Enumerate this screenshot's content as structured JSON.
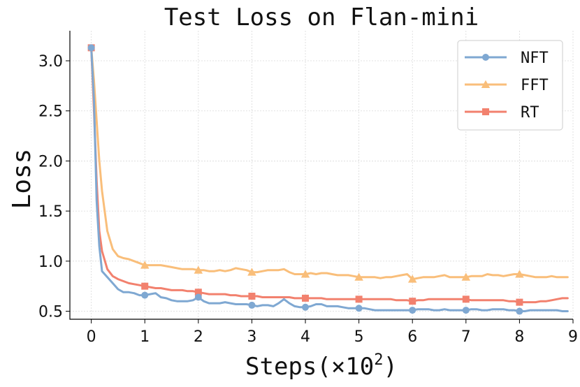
{
  "chart_data": {
    "type": "line",
    "title": "Test Loss on Flan-mini",
    "xlabel": "Steps(×10",
    "xlabel_sup": "2",
    "xlabel_close": ")",
    "ylabel": "Loss",
    "xlim": [
      -0.4,
      9.0
    ],
    "ylim": [
      0.42,
      3.3
    ],
    "xticks": [
      "0",
      "1",
      "2",
      "3",
      "4",
      "5",
      "6",
      "7",
      "8",
      "9"
    ],
    "yticks": [
      "0.5",
      "1.0",
      "1.5",
      "2.0",
      "2.5",
      "3.0"
    ],
    "grid": true,
    "legend_position": "top-right",
    "series": [
      {
        "name": "NFT",
        "color": "#7FA8D2",
        "marker": "circle",
        "x": [
          0,
          0.05,
          0.1,
          0.15,
          0.2,
          0.3,
          0.4,
          0.5,
          0.6,
          0.7,
          0.8,
          0.9,
          1.0,
          1.1,
          1.2,
          1.3,
          1.4,
          1.5,
          1.6,
          1.7,
          1.8,
          1.9,
          2.0,
          2.1,
          2.2,
          2.3,
          2.4,
          2.5,
          2.6,
          2.7,
          2.8,
          2.9,
          3.0,
          3.1,
          3.2,
          3.3,
          3.4,
          3.5,
          3.6,
          3.7,
          3.8,
          3.9,
          4.0,
          4.1,
          4.2,
          4.3,
          4.4,
          4.5,
          4.6,
          4.7,
          4.8,
          4.9,
          5.0,
          5.1,
          5.2,
          5.3,
          5.4,
          5.5,
          5.6,
          5.7,
          5.8,
          5.9,
          6.0,
          6.1,
          6.2,
          6.3,
          6.4,
          6.5,
          6.6,
          6.7,
          6.8,
          6.9,
          7.0,
          7.1,
          7.2,
          7.3,
          7.4,
          7.5,
          7.6,
          7.7,
          7.8,
          7.9,
          8.0,
          8.1,
          8.2,
          8.3,
          8.4,
          8.5,
          8.6,
          8.7,
          8.8,
          8.9
        ],
        "values": [
          3.13,
          2.6,
          1.6,
          1.15,
          0.9,
          0.84,
          0.78,
          0.72,
          0.69,
          0.69,
          0.68,
          0.66,
          0.66,
          0.67,
          0.68,
          0.64,
          0.63,
          0.61,
          0.6,
          0.6,
          0.6,
          0.61,
          0.64,
          0.6,
          0.58,
          0.58,
          0.58,
          0.59,
          0.58,
          0.57,
          0.57,
          0.57,
          0.56,
          0.55,
          0.56,
          0.56,
          0.55,
          0.58,
          0.62,
          0.58,
          0.55,
          0.54,
          0.54,
          0.55,
          0.57,
          0.57,
          0.55,
          0.55,
          0.55,
          0.54,
          0.53,
          0.53,
          0.53,
          0.53,
          0.52,
          0.51,
          0.51,
          0.51,
          0.51,
          0.51,
          0.51,
          0.51,
          0.51,
          0.52,
          0.52,
          0.52,
          0.51,
          0.51,
          0.52,
          0.51,
          0.51,
          0.51,
          0.51,
          0.52,
          0.52,
          0.51,
          0.51,
          0.52,
          0.52,
          0.52,
          0.51,
          0.51,
          0.5,
          0.5,
          0.51,
          0.51,
          0.51,
          0.51,
          0.51,
          0.51,
          0.5,
          0.5
        ],
        "marker_x": [
          0,
          1,
          2,
          3,
          4,
          5,
          6,
          7,
          8
        ]
      },
      {
        "name": "FFT",
        "color": "#F9BE7A",
        "marker": "triangle",
        "x": [
          0,
          0.05,
          0.1,
          0.15,
          0.2,
          0.3,
          0.4,
          0.5,
          0.6,
          0.7,
          0.8,
          0.9,
          1.0,
          1.1,
          1.2,
          1.3,
          1.4,
          1.5,
          1.6,
          1.7,
          1.8,
          1.9,
          2.0,
          2.1,
          2.2,
          2.3,
          2.4,
          2.5,
          2.6,
          2.7,
          2.8,
          2.9,
          3.0,
          3.1,
          3.2,
          3.3,
          3.4,
          3.5,
          3.6,
          3.7,
          3.8,
          3.9,
          4.0,
          4.1,
          4.2,
          4.3,
          4.4,
          4.5,
          4.6,
          4.7,
          4.8,
          4.9,
          5.0,
          5.1,
          5.2,
          5.3,
          5.4,
          5.5,
          5.6,
          5.7,
          5.8,
          5.9,
          6.0,
          6.1,
          6.2,
          6.3,
          6.4,
          6.5,
          6.6,
          6.7,
          6.8,
          6.9,
          7.0,
          7.1,
          7.2,
          7.3,
          7.4,
          7.5,
          7.6,
          7.7,
          7.8,
          7.9,
          8.0,
          8.1,
          8.2,
          8.3,
          8.4,
          8.5,
          8.6,
          8.7,
          8.8,
          8.9
        ],
        "values": [
          3.13,
          2.8,
          2.4,
          2.0,
          1.7,
          1.3,
          1.12,
          1.05,
          1.03,
          1.02,
          1.0,
          0.98,
          0.96,
          0.96,
          0.96,
          0.96,
          0.95,
          0.94,
          0.93,
          0.92,
          0.92,
          0.92,
          0.91,
          0.91,
          0.9,
          0.9,
          0.91,
          0.9,
          0.91,
          0.93,
          0.92,
          0.91,
          0.89,
          0.89,
          0.9,
          0.91,
          0.91,
          0.91,
          0.92,
          0.89,
          0.87,
          0.87,
          0.87,
          0.88,
          0.87,
          0.88,
          0.88,
          0.87,
          0.86,
          0.86,
          0.86,
          0.85,
          0.84,
          0.84,
          0.84,
          0.84,
          0.83,
          0.84,
          0.84,
          0.85,
          0.86,
          0.87,
          0.82,
          0.83,
          0.84,
          0.84,
          0.84,
          0.85,
          0.86,
          0.84,
          0.84,
          0.84,
          0.84,
          0.85,
          0.85,
          0.85,
          0.87,
          0.86,
          0.86,
          0.85,
          0.86,
          0.87,
          0.87,
          0.86,
          0.85,
          0.84,
          0.84,
          0.84,
          0.85,
          0.84,
          0.84,
          0.84
        ],
        "marker_x": [
          1,
          2,
          3,
          4,
          5,
          6,
          7,
          8
        ]
      },
      {
        "name": "RT",
        "color": "#F2816E",
        "marker": "square",
        "x": [
          0,
          0.05,
          0.1,
          0.15,
          0.2,
          0.3,
          0.4,
          0.5,
          0.6,
          0.7,
          0.8,
          0.9,
          1.0,
          1.1,
          1.2,
          1.3,
          1.4,
          1.5,
          1.6,
          1.7,
          1.8,
          1.9,
          2.0,
          2.1,
          2.2,
          2.3,
          2.4,
          2.5,
          2.6,
          2.7,
          2.8,
          2.9,
          3.0,
          3.1,
          3.2,
          3.3,
          3.4,
          3.5,
          3.6,
          3.7,
          3.8,
          3.9,
          4.0,
          4.1,
          4.2,
          4.3,
          4.4,
          4.5,
          4.6,
          4.7,
          4.8,
          4.9,
          5.0,
          5.1,
          5.2,
          5.3,
          5.4,
          5.5,
          5.6,
          5.7,
          5.8,
          5.9,
          6.0,
          6.1,
          6.2,
          6.3,
          6.4,
          6.5,
          6.6,
          6.7,
          6.8,
          6.9,
          7.0,
          7.1,
          7.2,
          7.3,
          7.4,
          7.5,
          7.6,
          7.7,
          7.8,
          7.9,
          8.0,
          8.1,
          8.2,
          8.3,
          8.4,
          8.5,
          8.6,
          8.7,
          8.8,
          8.9
        ],
        "values": [
          3.13,
          2.5,
          1.8,
          1.3,
          1.1,
          0.92,
          0.85,
          0.82,
          0.8,
          0.78,
          0.77,
          0.76,
          0.75,
          0.74,
          0.73,
          0.73,
          0.72,
          0.71,
          0.71,
          0.71,
          0.7,
          0.7,
          0.69,
          0.68,
          0.67,
          0.67,
          0.67,
          0.67,
          0.66,
          0.66,
          0.65,
          0.65,
          0.65,
          0.65,
          0.64,
          0.64,
          0.64,
          0.64,
          0.64,
          0.64,
          0.63,
          0.63,
          0.63,
          0.63,
          0.63,
          0.63,
          0.62,
          0.62,
          0.62,
          0.62,
          0.62,
          0.62,
          0.62,
          0.62,
          0.62,
          0.62,
          0.62,
          0.62,
          0.62,
          0.61,
          0.61,
          0.61,
          0.6,
          0.61,
          0.61,
          0.62,
          0.62,
          0.62,
          0.62,
          0.62,
          0.62,
          0.62,
          0.62,
          0.61,
          0.61,
          0.61,
          0.61,
          0.61,
          0.61,
          0.61,
          0.6,
          0.6,
          0.59,
          0.59,
          0.59,
          0.59,
          0.6,
          0.6,
          0.61,
          0.62,
          0.63,
          0.63
        ],
        "marker_x": [
          0,
          1,
          2,
          3,
          4,
          5,
          6,
          7,
          8
        ]
      }
    ]
  }
}
